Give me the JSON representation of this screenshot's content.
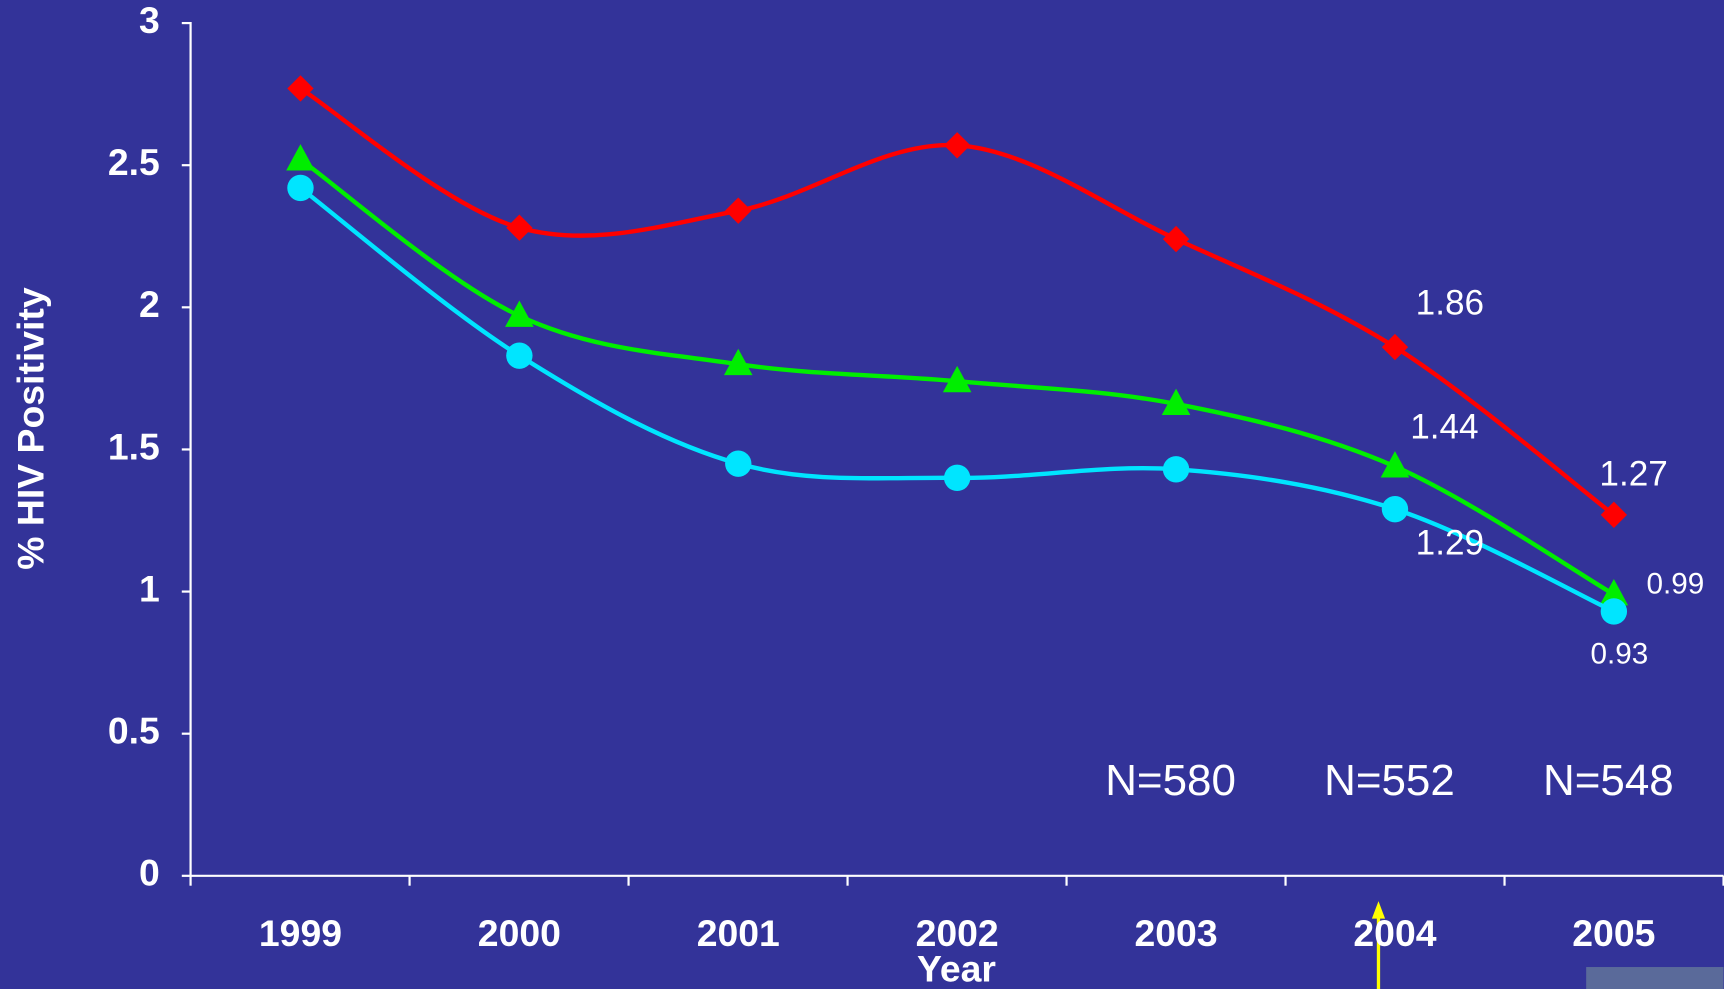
{
  "chart_data": {
    "type": "line",
    "categories": [
      "1999",
      "2000",
      "2001",
      "2002",
      "2003",
      "2004",
      "2005"
    ],
    "series": [
      {
        "color": "#ff0000",
        "marker": "diamond",
        "values": [
          2.77,
          2.28,
          2.34,
          2.57,
          2.24,
          1.86,
          1.27
        ],
        "value_labels": [
          null,
          null,
          null,
          null,
          null,
          "1.86",
          "1.27"
        ]
      },
      {
        "color": "#00ee00",
        "marker": "triangle",
        "values": [
          2.52,
          1.97,
          1.8,
          1.74,
          1.66,
          1.44,
          0.99
        ],
        "value_labels": [
          null,
          null,
          null,
          null,
          null,
          "1.44",
          "0.99"
        ]
      },
      {
        "color": "#00e5ff",
        "marker": "circle",
        "values": [
          2.42,
          1.83,
          1.45,
          1.4,
          1.43,
          1.29,
          0.93
        ],
        "value_labels": [
          null,
          null,
          null,
          null,
          null,
          "1.29",
          "0.93"
        ]
      }
    ],
    "ylabel": "% HIV Positivity",
    "xlabel": "Year",
    "ylim": [
      0,
      3
    ],
    "yticks": [
      0,
      0.5,
      1,
      1.5,
      2,
      2.5,
      3
    ],
    "annotations": [
      {
        "text": "N=580",
        "category": "2003"
      },
      {
        "text": "N=552",
        "category": "2004"
      },
      {
        "text": "N=548",
        "category": "2005"
      }
    ]
  }
}
